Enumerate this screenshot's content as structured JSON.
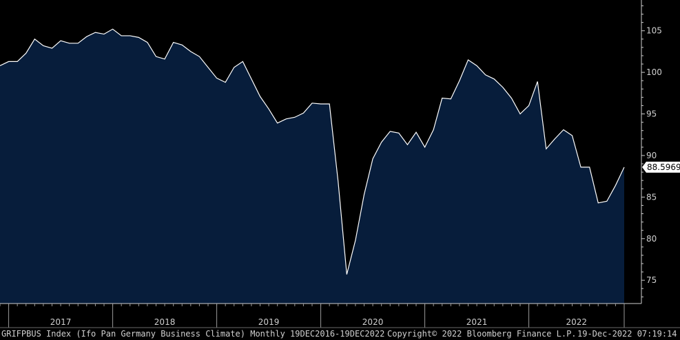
{
  "chart_data": {
    "type": "area",
    "title": "",
    "xlabel": "",
    "ylabel": "",
    "x": [
      "2016-12",
      "2017-01",
      "2017-02",
      "2017-03",
      "2017-04",
      "2017-05",
      "2017-06",
      "2017-07",
      "2017-08",
      "2017-09",
      "2017-10",
      "2017-11",
      "2017-12",
      "2018-01",
      "2018-02",
      "2018-03",
      "2018-04",
      "2018-05",
      "2018-06",
      "2018-07",
      "2018-08",
      "2018-09",
      "2018-10",
      "2018-11",
      "2018-12",
      "2019-01",
      "2019-02",
      "2019-03",
      "2019-04",
      "2019-05",
      "2019-06",
      "2019-07",
      "2019-08",
      "2019-09",
      "2019-10",
      "2019-11",
      "2019-12",
      "2020-01",
      "2020-02",
      "2020-03",
      "2020-04",
      "2020-05",
      "2020-06",
      "2020-07",
      "2020-08",
      "2020-09",
      "2020-10",
      "2020-11",
      "2020-12",
      "2021-01",
      "2021-02",
      "2021-03",
      "2021-04",
      "2021-05",
      "2021-06",
      "2021-07",
      "2021-08",
      "2021-09",
      "2021-10",
      "2021-11",
      "2021-12",
      "2022-01",
      "2022-02",
      "2022-03",
      "2022-04",
      "2022-05",
      "2022-06",
      "2022-07",
      "2022-08",
      "2022-09",
      "2022-10",
      "2022-11",
      "2022-12"
    ],
    "values": [
      100.8,
      101.3,
      101.3,
      102.3,
      104.0,
      103.2,
      102.9,
      103.8,
      103.5,
      103.5,
      104.3,
      104.8,
      104.6,
      105.2,
      104.4,
      104.4,
      104.2,
      103.6,
      101.9,
      101.6,
      103.6,
      103.3,
      102.5,
      101.9,
      100.6,
      99.3,
      98.8,
      100.6,
      101.3,
      99.2,
      97.1,
      95.6,
      93.9,
      94.4,
      94.6,
      95.1,
      96.3,
      96.2,
      96.2,
      86.9,
      75.7,
      79.8,
      85.3,
      89.6,
      91.6,
      92.9,
      92.7,
      91.3,
      92.8,
      91.0,
      93.1,
      96.9,
      96.8,
      99.0,
      101.5,
      100.8,
      99.7,
      99.2,
      98.2,
      96.9,
      95.0,
      96.0,
      98.9,
      90.8,
      92.0,
      93.1,
      92.4,
      88.6,
      88.6,
      84.3,
      84.5,
      86.4,
      88.5969
    ],
    "ylim": [
      72.2,
      108.7
    ],
    "yticks": [
      75,
      80,
      85,
      90,
      95,
      100,
      105
    ],
    "xlim": [
      "2016-12",
      "2022-12"
    ],
    "year_labels": [
      "2017",
      "2018",
      "2019",
      "2020",
      "2021",
      "2022"
    ],
    "last_value_label": "88.5969",
    "line_color": "#ffffff",
    "fill_color": "#071d3b",
    "background": "#000000",
    "grid": false
  },
  "footer": {
    "left": "GRIFPBUS Index (Ifo Pan Germany Business Climate)  Monthly 19DEC2016-19DEC2022",
    "center": "Copyright© 2022 Bloomberg Finance L.P.",
    "right": "19-Dec-2022 07:19:14"
  }
}
